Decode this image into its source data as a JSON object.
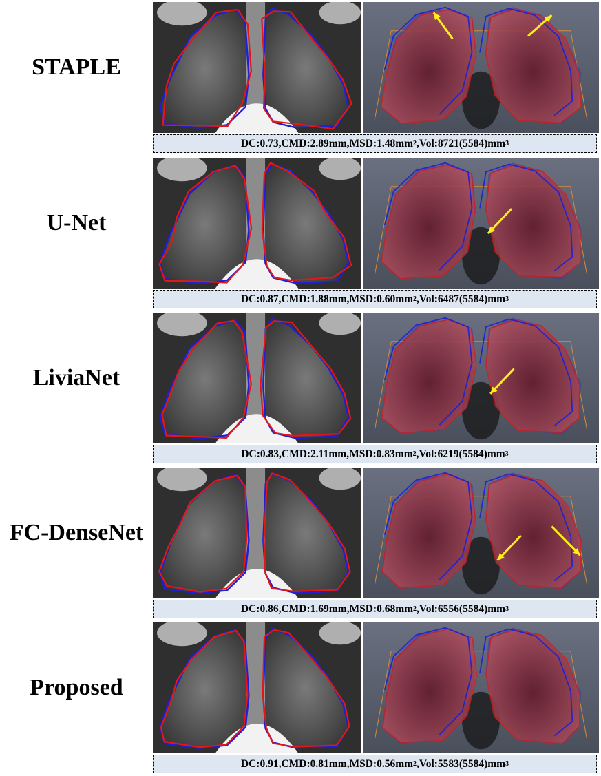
{
  "rows": [
    {
      "method": "STAPLE",
      "dc": "0.73",
      "cmd": "2.89mm",
      "msd": "1.48mm",
      "vol": "8721",
      "ref": "(5584)",
      "arrows": [
        [
          0.38,
          0.28,
          0.3,
          0.08
        ],
        [
          0.7,
          0.26,
          0.8,
          0.1
        ]
      ]
    },
    {
      "method": "U-Net",
      "dc": "0.87",
      "cmd": "1.88mm",
      "msd": "0.60mm",
      "vol": "6487",
      "ref": "(5584)",
      "arrows": [
        [
          0.63,
          0.39,
          0.53,
          0.58
        ]
      ]
    },
    {
      "method": "LiviaNet",
      "dc": "0.83",
      "cmd": "2.11mm",
      "msd": "0.83mm",
      "vol": "6219",
      "ref": "(5584)",
      "arrows": [
        [
          0.64,
          0.43,
          0.54,
          0.62
        ]
      ]
    },
    {
      "method": "FC-DenseNet",
      "dc": "0.86",
      "cmd": "1.69mm",
      "msd": "0.68mm",
      "vol": "6556",
      "ref": "(5584)",
      "arrows": [
        [
          0.67,
          0.52,
          0.57,
          0.71
        ],
        [
          0.8,
          0.45,
          0.92,
          0.67
        ]
      ]
    },
    {
      "method": "Proposed",
      "dc": "0.91",
      "cmd": "0.81mm",
      "msd": "0.56mm",
      "vol": "5583",
      "ref": "(5584)",
      "arrows": []
    }
  ],
  "metric_labels": {
    "dc": "DC:",
    "cmd": "CMD:",
    "msd": "MSD:",
    "msd_sup": "2",
    "vol": "Vol:",
    "unit": "mm",
    "unit_sup": "3"
  },
  "colors": {
    "reference_contour": "#1f1fd6",
    "predicted_contour": "#e01818",
    "arrow": "#ffee1a",
    "metrics_background": "#dde6f1",
    "render_background": "#5c6272"
  }
}
